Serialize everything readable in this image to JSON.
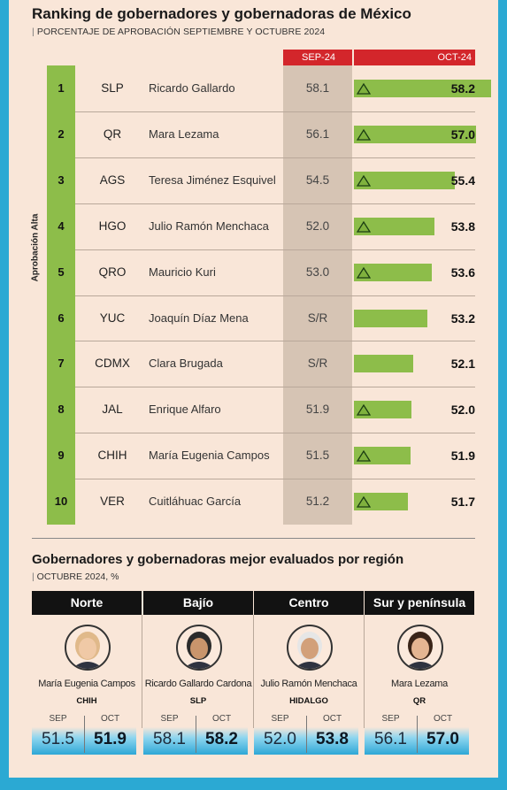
{
  "title": "Ranking de gobernadores y gobernadoras de México",
  "subtitle": "PORCENTAJE DE APROBACIÓN SEPTIEMBRE Y OCTUBRE 2024",
  "vertical_label": "Aprobación Alta",
  "colors": {
    "accent_red": "#d3262b",
    "green": "#8dbd4a",
    "blue": "#2ba9d3",
    "background": "#f9e6d8"
  },
  "chart_data": {
    "type": "bar",
    "title": "Ranking de gobernadores y gobernadoras de México",
    "subtitle": "PORCENTAJE DE APROBACIÓN SEPTIEMBRE Y OCTUBRE 2024",
    "columns": [
      "SEP-24",
      "OCT-24"
    ],
    "rows": [
      {
        "rank": "1",
        "state": "SLP",
        "name": "Ricardo Gallardo",
        "sep": "58.1",
        "oct": 58.2,
        "oct_label": "58.2",
        "up": true
      },
      {
        "rank": "2",
        "state": "QR",
        "name": "Mara Lezama",
        "sep": "56.1",
        "oct": 57.0,
        "oct_label": "57.0",
        "up": true
      },
      {
        "rank": "3",
        "state": "AGS",
        "name": "Teresa Jiménez Esquivel",
        "sep": "54.5",
        "oct": 55.4,
        "oct_label": "55.4",
        "up": true
      },
      {
        "rank": "4",
        "state": "HGO",
        "name": "Julio Ramón Menchaca",
        "sep": "52.0",
        "oct": 53.8,
        "oct_label": "53.8",
        "up": true
      },
      {
        "rank": "5",
        "state": "QRO",
        "name": "Mauricio Kuri",
        "sep": "53.0",
        "oct": 53.6,
        "oct_label": "53.6",
        "up": true
      },
      {
        "rank": "6",
        "state": "YUC",
        "name": "Joaquín Díaz Mena",
        "sep": "S/R",
        "oct": 53.2,
        "oct_label": "53.2",
        "up": false
      },
      {
        "rank": "7",
        "state": "CDMX",
        "name": "Clara Brugada",
        "sep": "S/R",
        "oct": 52.1,
        "oct_label": "52.1",
        "up": false
      },
      {
        "rank": "8",
        "state": "JAL",
        "name": "Enrique Alfaro",
        "sep": "51.9",
        "oct": 52.0,
        "oct_label": "52.0",
        "up": true
      },
      {
        "rank": "9",
        "state": "CHIH",
        "name": "María Eugenia Campos",
        "sep": "51.5",
        "oct": 51.9,
        "oct_label": "51.9",
        "up": true
      },
      {
        "rank": "10",
        "state": "VER",
        "name": "Cuitláhuac García",
        "sep": "51.2",
        "oct": 51.7,
        "oct_label": "51.7",
        "up": true
      }
    ]
  },
  "regions_section": {
    "title": "Gobernadores y gobernadoras mejor evaluados por región",
    "subtitle": "OCTUBRE 2024, %",
    "sep_label": "SEP",
    "oct_label": "OCT",
    "regions": [
      {
        "region": "Norte",
        "name": "María Eugenia Campos",
        "state": "CHIH",
        "sep": "51.5",
        "oct": "51.9",
        "avatar": "woman-blonde"
      },
      {
        "region": "Bajío",
        "name": "Ricardo Gallardo Cardona",
        "state": "SLP",
        "sep": "58.1",
        "oct": "58.2",
        "avatar": "man-dark-hair"
      },
      {
        "region": "Centro",
        "name": "Julio Ramón Menchaca",
        "state": "HIDALGO",
        "sep": "52.0",
        "oct": "53.8",
        "avatar": "man-white-hair"
      },
      {
        "region": "Sur y península",
        "name": "Mara Lezama",
        "state": "QR",
        "sep": "56.1",
        "oct": "57.0",
        "avatar": "woman-dark-hair"
      }
    ]
  }
}
